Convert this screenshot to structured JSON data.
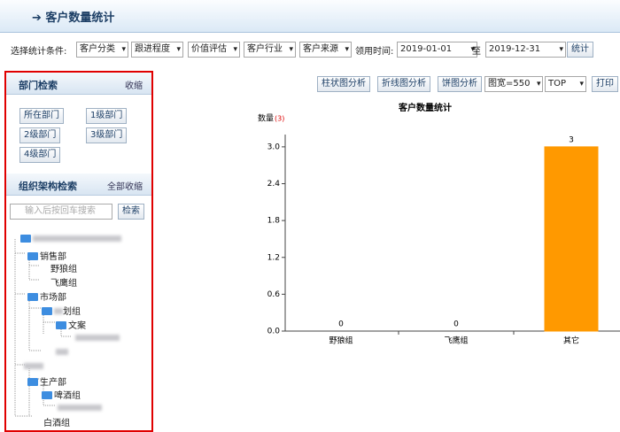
{
  "header": {
    "title": "客户数量统计"
  },
  "filters": {
    "label": "选择统计条件:",
    "selects": [
      "客户分类",
      "跟进程度",
      "价值评估",
      "客户行业",
      "客户来源"
    ],
    "time_label": "领用时间:",
    "start": "2019-01-01",
    "to": "至",
    "end": "2019-12-31",
    "button": "统计"
  },
  "sidebar": {
    "dept": {
      "title": "部门检索",
      "toggle": "收缩",
      "buttons": [
        "所在部门",
        "1级部门",
        "2级部门",
        "3级部门",
        "4级部门"
      ]
    },
    "org": {
      "title": "组织架构检索",
      "toggle": "全部收缩",
      "placeholder": "输入后按回车搜索",
      "button": "检索",
      "nodes": [
        "销售部",
        "野狼组",
        "飞鹰组",
        "市场部",
        "划组",
        "文案",
        "生产部",
        "啤酒组",
        "白酒组"
      ]
    }
  },
  "toolbar": {
    "buttons": [
      "柱状图分析",
      "折线图分析",
      "饼图分析",
      "打印"
    ],
    "width_select": "图宽=550",
    "top_select": "TOP"
  },
  "chart_data": {
    "type": "bar",
    "title": "客户数量统计",
    "y_label": "数量",
    "y_label_count": "(3)",
    "categories": [
      "野狼组",
      "飞鹰组",
      "其它"
    ],
    "values": [
      0,
      0,
      3
    ],
    "colors": [
      "#2e9e3a",
      "#d9302c",
      "#ff9900"
    ],
    "ylim": [
      0,
      3.2
    ],
    "yticks": [
      {
        "value": 0,
        "label": "0.0"
      },
      {
        "value": 0.6,
        "label": "0.6"
      },
      {
        "value": 1.2,
        "label": "1.2"
      },
      {
        "value": 1.8,
        "label": "1.8"
      },
      {
        "value": 2.4,
        "label": "2.4"
      },
      {
        "value": 3,
        "label": "3.0"
      }
    ],
    "grid": false
  }
}
